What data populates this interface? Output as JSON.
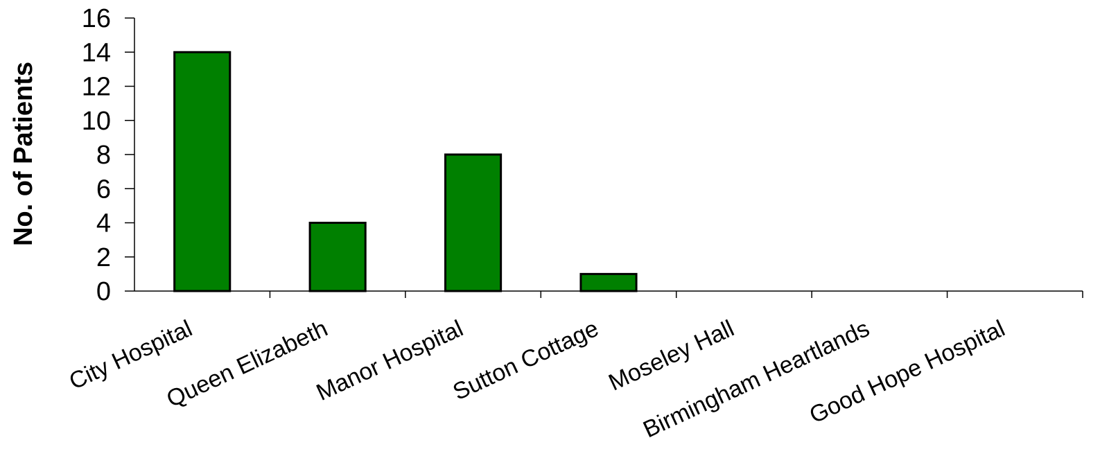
{
  "chart_data": {
    "type": "bar",
    "title": "",
    "xlabel": "",
    "ylabel": "No. of Patients",
    "ylim": [
      0,
      16
    ],
    "yticks": [
      0,
      2,
      4,
      6,
      8,
      10,
      12,
      14,
      16
    ],
    "grid": false,
    "legend": "none",
    "bar_color": "#008000",
    "categories": [
      "City Hospital",
      "Queen Elizabeth",
      "Manor Hospital",
      "Sutton Cottage",
      "Moseley Hall",
      "Birmingham Heartlands",
      "Good Hope Hospital"
    ],
    "values": [
      14,
      4,
      8,
      1,
      0,
      0,
      0
    ]
  }
}
